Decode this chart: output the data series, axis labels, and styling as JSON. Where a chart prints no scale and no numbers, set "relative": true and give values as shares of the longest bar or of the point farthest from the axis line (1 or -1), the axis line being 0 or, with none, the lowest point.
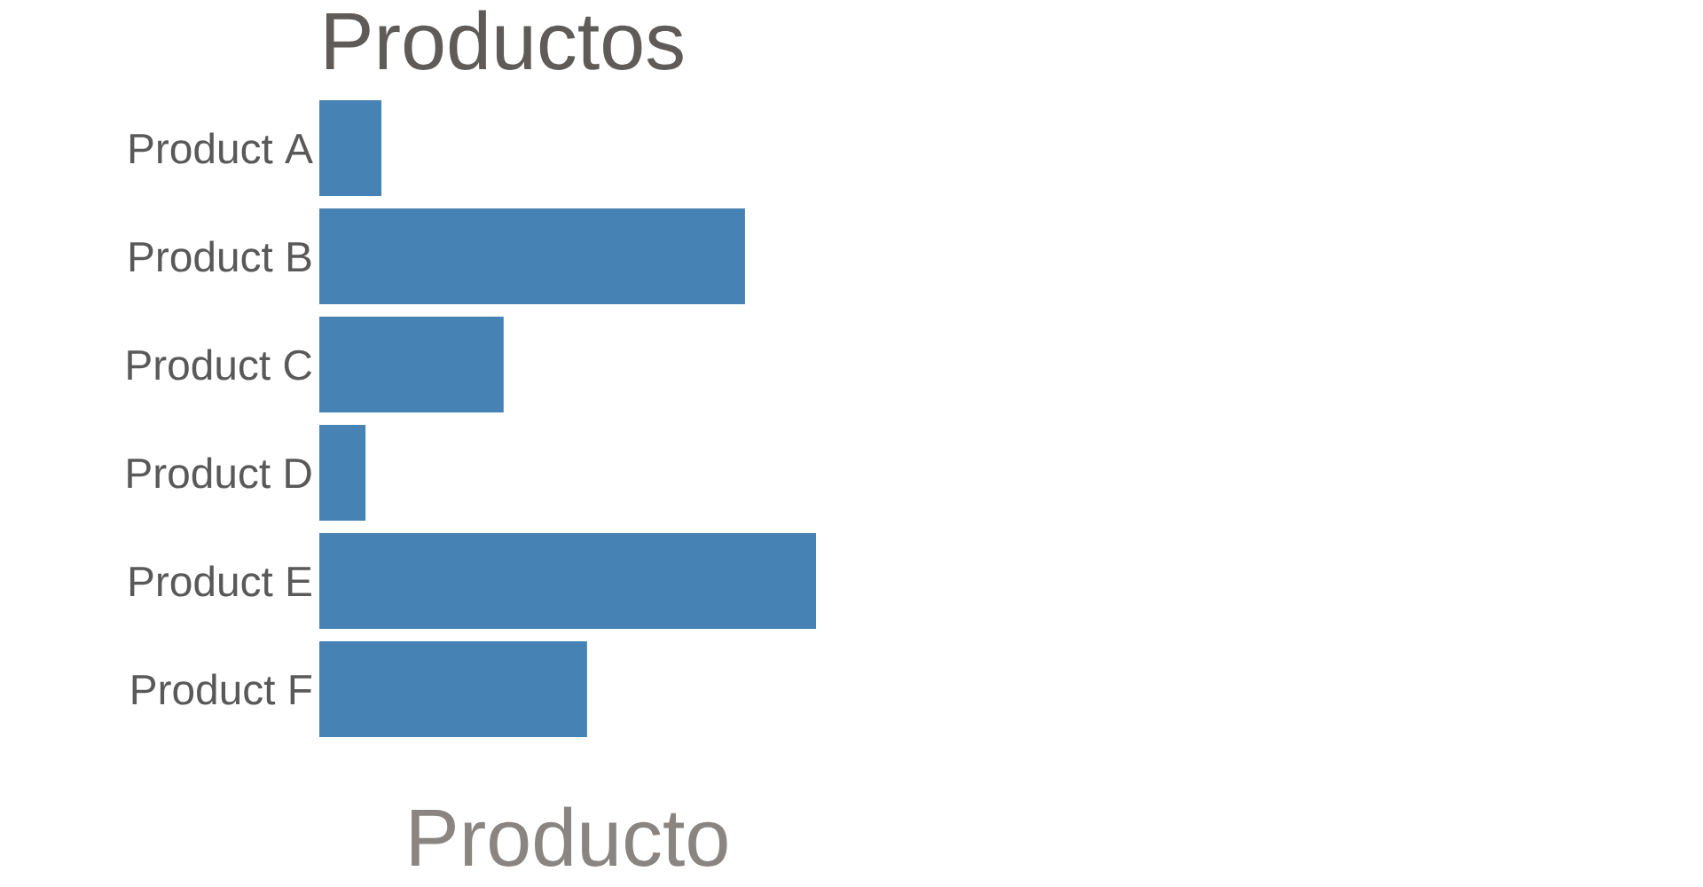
{
  "chart_data": {
    "type": "bar",
    "orientation": "horizontal",
    "relative": true,
    "title": "Productos",
    "xlabel": "Producto",
    "categories": [
      "Product A",
      "Product B",
      "Product C",
      "Product D",
      "Product E",
      "Product F"
    ],
    "values": [
      0.125,
      0.857,
      0.371,
      0.093,
      1,
      0.539
    ],
    "color": "#4682b4"
  }
}
